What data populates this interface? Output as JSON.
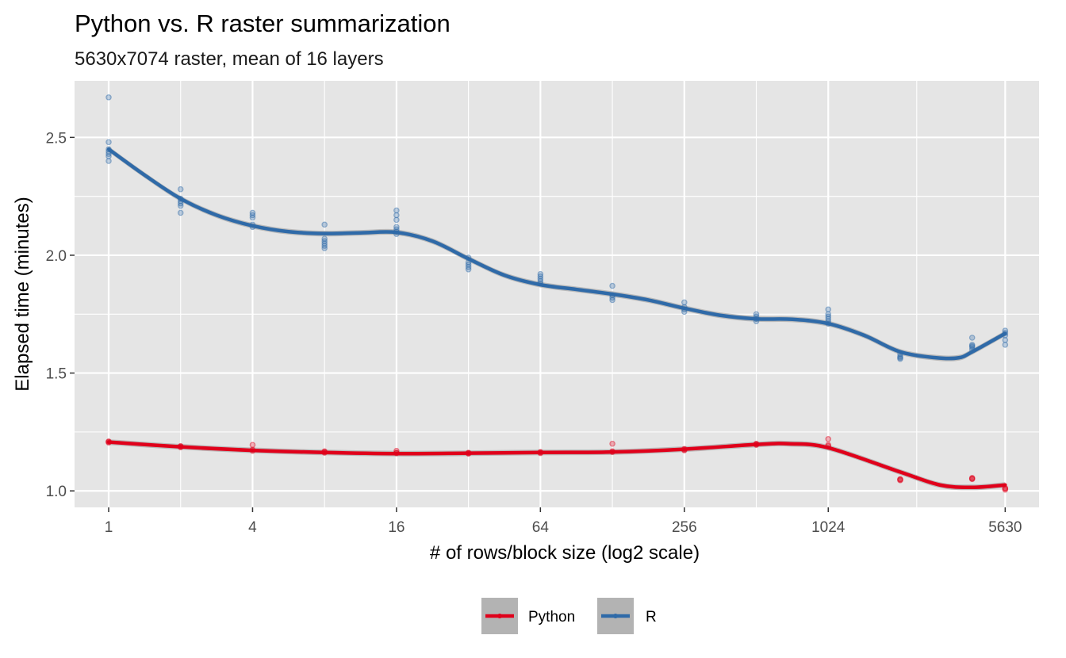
{
  "chart_data": {
    "type": "line",
    "title": "Python vs. R raster summarization",
    "subtitle": "5630x7074 raster, mean of 16 layers",
    "xlabel": "# of rows/block size (log2 scale)",
    "ylabel": "Elapsed time (minutes)",
    "x_scale": "log2",
    "x_ticks": [
      1,
      4,
      16,
      64,
      256,
      1024,
      5630
    ],
    "x_tick_labels": [
      "1",
      "4",
      "16",
      "64",
      "256",
      "1024",
      "5630"
    ],
    "y_ticks": [
      1.0,
      1.5,
      2.0,
      2.5
    ],
    "y_tick_labels": [
      "1.0",
      "1.5",
      "2.0",
      "2.5"
    ],
    "xlim": [
      0.72,
      7800
    ],
    "ylim": [
      0.93,
      2.74
    ],
    "grid": true,
    "legend_position": "bottom",
    "colors": {
      "Python": "#e0001b",
      "R": "#2f6aa8",
      "panel": "#e5e5e5",
      "grid": "#ffffff",
      "ribbon": "#b3b3b3"
    },
    "series": [
      {
        "name": "Python",
        "color": "#e0001b",
        "points": [
          {
            "x": 1,
            "y": [
              1.21,
              1.205,
              1.208
            ]
          },
          {
            "x": 2,
            "y": [
              1.19,
              1.185,
              1.188
            ]
          },
          {
            "x": 4,
            "y": [
              1.195,
              1.175,
              1.17
            ]
          },
          {
            "x": 8,
            "y": [
              1.165,
              1.162,
              1.168
            ]
          },
          {
            "x": 16,
            "y": [
              1.17,
              1.16,
              1.162
            ]
          },
          {
            "x": 32,
            "y": [
              1.16,
              1.158,
              1.162
            ]
          },
          {
            "x": 64,
            "y": [
              1.165,
              1.16,
              1.163
            ]
          },
          {
            "x": 128,
            "y": [
              1.2,
              1.165,
              1.168
            ]
          },
          {
            "x": 256,
            "y": [
              1.175,
              1.172,
              1.178
            ]
          },
          {
            "x": 512,
            "y": [
              1.2,
              1.195,
              1.198
            ]
          },
          {
            "x": 1024,
            "y": [
              1.22,
              1.19,
              1.195
            ]
          },
          {
            "x": 2048,
            "y": [
              1.045,
              1.048,
              1.05
            ]
          },
          {
            "x": 4096,
            "y": [
              1.05,
              1.055,
              1.052
            ]
          },
          {
            "x": 5630,
            "y": [
              1.01,
              1.005,
              1.012
            ]
          }
        ],
        "smooth": [
          {
            "x": 1,
            "y": 1.207
          },
          {
            "x": 2,
            "y": 1.187
          },
          {
            "x": 4,
            "y": 1.172
          },
          {
            "x": 8,
            "y": 1.163
          },
          {
            "x": 16,
            "y": 1.158
          },
          {
            "x": 32,
            "y": 1.16
          },
          {
            "x": 64,
            "y": 1.163
          },
          {
            "x": 128,
            "y": 1.165
          },
          {
            "x": 256,
            "y": 1.177
          },
          {
            "x": 512,
            "y": 1.197
          },
          {
            "x": 700,
            "y": 1.2
          },
          {
            "x": 1024,
            "y": 1.183
          },
          {
            "x": 2048,
            "y": 1.08
          },
          {
            "x": 3000,
            "y": 1.025
          },
          {
            "x": 4096,
            "y": 1.015
          },
          {
            "x": 5630,
            "y": 1.025
          }
        ]
      },
      {
        "name": "R",
        "color": "#2f6aa8",
        "points": [
          {
            "x": 1,
            "y": [
              2.67,
              2.48,
              2.45,
              2.44,
              2.43,
              2.42,
              2.4
            ]
          },
          {
            "x": 2,
            "y": [
              2.28,
              2.24,
              2.23,
              2.22,
              2.21,
              2.18
            ]
          },
          {
            "x": 4,
            "y": [
              2.18,
              2.17,
              2.16,
              2.13,
              2.12
            ]
          },
          {
            "x": 8,
            "y": [
              2.13,
              2.07,
              2.06,
              2.05,
              2.04,
              2.03
            ]
          },
          {
            "x": 16,
            "y": [
              2.19,
              2.17,
              2.15,
              2.12,
              2.11,
              2.1,
              2.09
            ]
          },
          {
            "x": 32,
            "y": [
              1.99,
              1.97,
              1.96,
              1.95,
              1.94
            ]
          },
          {
            "x": 64,
            "y": [
              1.92,
              1.91,
              1.9,
              1.89,
              1.88
            ]
          },
          {
            "x": 128,
            "y": [
              1.87,
              1.83,
              1.82,
              1.81
            ]
          },
          {
            "x": 256,
            "y": [
              1.8,
              1.78,
              1.77,
              1.76
            ]
          },
          {
            "x": 512,
            "y": [
              1.75,
              1.74,
              1.73,
              1.72
            ]
          },
          {
            "x": 1024,
            "y": [
              1.77,
              1.75,
              1.74,
              1.73,
              1.72,
              1.71
            ]
          },
          {
            "x": 2048,
            "y": [
              1.58,
              1.57,
              1.565,
              1.56
            ]
          },
          {
            "x": 4096,
            "y": [
              1.65,
              1.62,
              1.615,
              1.61,
              1.6
            ]
          },
          {
            "x": 5630,
            "y": [
              1.68,
              1.67,
              1.66,
              1.64,
              1.62
            ]
          }
        ],
        "smooth": [
          {
            "x": 1,
            "y": 2.45
          },
          {
            "x": 1.414,
            "y": 2.34
          },
          {
            "x": 2,
            "y": 2.24
          },
          {
            "x": 2.83,
            "y": 2.17
          },
          {
            "x": 4,
            "y": 2.125
          },
          {
            "x": 5.66,
            "y": 2.1
          },
          {
            "x": 8,
            "y": 2.092
          },
          {
            "x": 11.3,
            "y": 2.095
          },
          {
            "x": 16,
            "y": 2.097
          },
          {
            "x": 22.6,
            "y": 2.06
          },
          {
            "x": 32,
            "y": 1.985
          },
          {
            "x": 45.3,
            "y": 1.915
          },
          {
            "x": 64,
            "y": 1.875
          },
          {
            "x": 90.5,
            "y": 1.855
          },
          {
            "x": 128,
            "y": 1.835
          },
          {
            "x": 181,
            "y": 1.81
          },
          {
            "x": 256,
            "y": 1.775
          },
          {
            "x": 362,
            "y": 1.745
          },
          {
            "x": 512,
            "y": 1.73
          },
          {
            "x": 724,
            "y": 1.728
          },
          {
            "x": 1024,
            "y": 1.71
          },
          {
            "x": 1448,
            "y": 1.66
          },
          {
            "x": 2048,
            "y": 1.59
          },
          {
            "x": 2896,
            "y": 1.565
          },
          {
            "x": 3600,
            "y": 1.565
          },
          {
            "x": 4096,
            "y": 1.59
          },
          {
            "x": 5630,
            "y": 1.668
          }
        ]
      }
    ]
  }
}
